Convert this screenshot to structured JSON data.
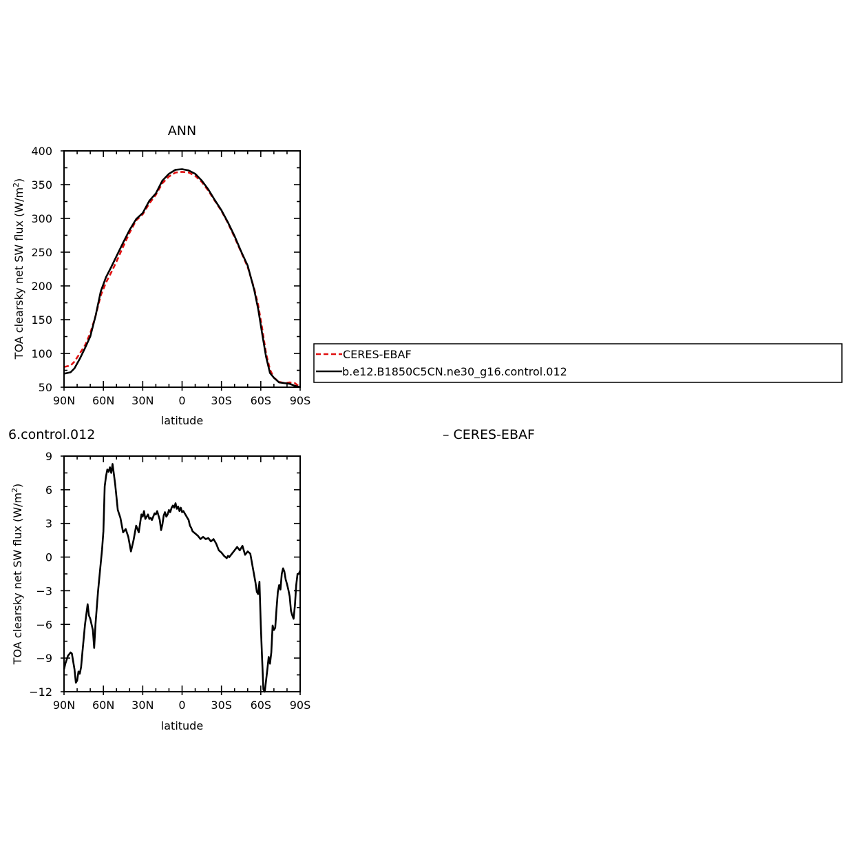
{
  "colors": {
    "model": "#000000",
    "obs": "#e01010",
    "background": "#ffffff"
  },
  "legend": {
    "obs_label": "CERES-EBAF",
    "model_label": "b.e12.B1850C5CN.ne30_g16.control.012"
  },
  "fragments": {
    "left": "6.control.012",
    "right": "– CERES-EBAF"
  },
  "chart_data": [
    {
      "type": "line",
      "title": "ANN",
      "xlabel": "latitude",
      "ylabel": "TOA clearsky net SW flux (W/m",
      "ylabel_sup": "2",
      "ylabel_close": ")",
      "xlim": [
        90,
        -90
      ],
      "ylim": [
        50,
        400
      ],
      "x_ticks": [
        90,
        60,
        30,
        0,
        -30,
        -60,
        -90
      ],
      "x_tick_labels": [
        "90N",
        "60N",
        "30N",
        "0",
        "30S",
        "60S",
        "90S"
      ],
      "y_ticks": [
        50,
        100,
        150,
        200,
        250,
        300,
        350,
        400
      ],
      "y_tick_labels": [
        "50",
        "100",
        "150",
        "200",
        "250",
        "300",
        "350",
        "400"
      ],
      "legend_position": "right",
      "series": [
        {
          "name": "CERES-EBAF",
          "style": "dashed",
          "x": [
            90,
            85,
            82,
            78,
            74,
            70,
            66,
            62,
            58,
            54,
            50,
            45,
            40,
            35,
            30,
            25,
            20,
            15,
            10,
            5,
            0,
            -5,
            -10,
            -15,
            -20,
            -25,
            -30,
            -35,
            -40,
            -45,
            -50,
            -55,
            -58,
            -61,
            -64,
            -67,
            -70,
            -74,
            -78,
            -82,
            -86,
            -90
          ],
          "y": [
            80,
            82,
            88,
            100,
            112,
            130,
            155,
            186,
            205,
            220,
            236,
            258,
            279,
            297,
            306,
            322,
            335,
            352,
            362,
            368,
            369,
            368,
            363,
            354,
            341,
            326,
            311,
            293,
            272,
            250,
            228,
            196,
            172,
            138,
            100,
            76,
            64,
            58,
            56,
            57,
            56,
            50
          ]
        },
        {
          "name": "b.e12.B1850C5CN.ne30_g16.control.012",
          "style": "solid",
          "x": [
            90,
            85,
            82,
            78,
            74,
            70,
            66,
            62,
            58,
            54,
            50,
            45,
            40,
            35,
            30,
            25,
            20,
            15,
            10,
            5,
            0,
            -5,
            -10,
            -15,
            -20,
            -25,
            -30,
            -35,
            -40,
            -45,
            -50,
            -55,
            -58,
            -61,
            -64,
            -67,
            -70,
            -74,
            -78,
            -82,
            -86,
            -90
          ],
          "y": [
            70,
            72,
            78,
            92,
            108,
            125,
            155,
            192,
            213,
            228,
            244,
            264,
            283,
            299,
            308,
            326,
            337,
            356,
            366,
            372,
            373,
            371,
            366,
            356,
            343,
            327,
            312,
            294,
            274,
            251,
            230,
            194,
            166,
            130,
            95,
            71,
            64,
            57,
            56,
            55,
            52,
            50
          ]
        }
      ]
    },
    {
      "type": "line",
      "title": "",
      "xlabel": "latitude",
      "ylabel": "TOA clearsky net SW flux (W/m",
      "ylabel_sup": "2",
      "ylabel_close": ")",
      "xlim": [
        90,
        -90
      ],
      "ylim": [
        -12,
        9
      ],
      "x_ticks": [
        90,
        60,
        30,
        0,
        -30,
        -60,
        -90
      ],
      "x_tick_labels": [
        "90N",
        "60N",
        "30N",
        "0",
        "30S",
        "60S",
        "90S"
      ],
      "y_ticks": [
        -12,
        -9,
        -6,
        -3,
        0,
        3,
        6,
        9
      ],
      "y_tick_labels": [
        "−12",
        "−9",
        "−6",
        "−3",
        "0",
        "3",
        "6",
        "9"
      ],
      "series": [
        {
          "style": "solid",
          "x": [
            90,
            89,
            87,
            85,
            84,
            82,
            81,
            80,
            79,
            78,
            77,
            76,
            74,
            72,
            71,
            70,
            68,
            67,
            66,
            64,
            62,
            61,
            60,
            59,
            58,
            57,
            56,
            55,
            54,
            53,
            51,
            49,
            47,
            45,
            43,
            41,
            39,
            37,
            35,
            33,
            31,
            30,
            29,
            28,
            27,
            26,
            25,
            24,
            23,
            22,
            21,
            20,
            19,
            18,
            17,
            16,
            15,
            14,
            13,
            12,
            11,
            10,
            9,
            8,
            7,
            6,
            5,
            4,
            3,
            2,
            1,
            0,
            -1,
            -2,
            -3,
            -4,
            -5,
            -6,
            -7,
            -8,
            -10,
            -12,
            -14,
            -16,
            -18,
            -20,
            -22,
            -24,
            -26,
            -28,
            -30,
            -32,
            -34,
            -35,
            -36,
            -38,
            -40,
            -42,
            -44,
            -46,
            -48,
            -50,
            -52,
            -54,
            -56,
            -57,
            -58,
            -59,
            -60,
            -61,
            -62,
            -63,
            -64,
            -65,
            -66,
            -67,
            -68,
            -69,
            -70,
            -71,
            -72,
            -73,
            -74,
            -75,
            -76,
            -77,
            -78,
            -79,
            -80,
            -81,
            -82,
            -83,
            -84,
            -85,
            -86,
            -87,
            -88,
            -89,
            -90
          ],
          "y": [
            -10.0,
            -9.5,
            -8.8,
            -8.5,
            -8.6,
            -10.0,
            -11.2,
            -11.0,
            -10.2,
            -10.4,
            -9.8,
            -8.5,
            -6.0,
            -4.2,
            -5.2,
            -5.5,
            -6.5,
            -8.1,
            -6.0,
            -3.0,
            -0.5,
            0.7,
            2.3,
            6.3,
            7.2,
            7.8,
            7.6,
            8.0,
            7.5,
            8.3,
            6.5,
            4.2,
            3.5,
            2.2,
            2.5,
            1.8,
            0.5,
            1.5,
            2.8,
            2.2,
            3.8,
            3.6,
            4.1,
            3.4,
            3.6,
            3.8,
            3.4,
            3.5,
            3.3,
            3.6,
            3.9,
            3.8,
            4.1,
            3.7,
            3.3,
            2.4,
            2.9,
            3.7,
            4.0,
            3.6,
            3.8,
            4.2,
            4.0,
            4.4,
            4.6,
            4.4,
            4.8,
            4.3,
            4.5,
            4.1,
            4.4,
            4.0,
            4.1,
            3.9,
            3.7,
            3.5,
            3.3,
            2.8,
            2.6,
            2.3,
            2.1,
            1.9,
            1.6,
            1.8,
            1.6,
            1.7,
            1.4,
            1.6,
            1.2,
            0.6,
            0.4,
            0.1,
            -0.1,
            0.1,
            0.0,
            0.3,
            0.6,
            0.9,
            0.6,
            1.0,
            0.2,
            0.5,
            0.3,
            -1.0,
            -2.3,
            -3.1,
            -3.3,
            -2.2,
            -6.0,
            -9.0,
            -11.8,
            -12.0,
            -11.0,
            -10.0,
            -8.9,
            -9.5,
            -8.5,
            -6.1,
            -6.5,
            -6.3,
            -4.6,
            -3.1,
            -2.5,
            -2.9,
            -1.5,
            -1.0,
            -1.3,
            -2.0,
            -2.4,
            -2.9,
            -3.5,
            -4.8,
            -5.2,
            -5.5,
            -4.3,
            -2.5,
            -1.5,
            -1.5,
            -1.2
          ]
        }
      ]
    }
  ]
}
